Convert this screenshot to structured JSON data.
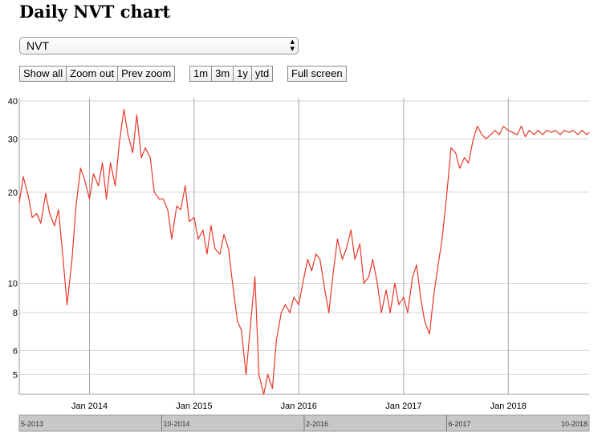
{
  "page": {
    "title": "Daily NVT chart"
  },
  "select": {
    "value": "NVT"
  },
  "buttons": {
    "zoom": [
      "Show all",
      "Zoom out",
      "Prev zoom"
    ],
    "ranges": [
      "1m",
      "3m",
      "1y",
      "ytd"
    ],
    "fullscreen": "Full screen"
  },
  "colors": {
    "line": "#e8382a",
    "grid": "#d3d3d3",
    "navigator": "#c8c8c8"
  },
  "chart_data": {
    "type": "line",
    "title": "Daily NVT chart",
    "scale": "log",
    "ylim": [
      4.3,
      41
    ],
    "xlim": [
      "2013-05-01",
      "2018-10-10"
    ],
    "grid": true,
    "yticks": [
      5,
      6,
      8,
      10,
      20,
      30,
      40
    ],
    "xticks": [
      {
        "date": "2014-01-01",
        "label": "Jan 2014"
      },
      {
        "date": "2015-01-01",
        "label": "Jan 2015"
      },
      {
        "date": "2016-01-01",
        "label": "Jan 2016"
      },
      {
        "date": "2017-01-01",
        "label": "Jan 2017"
      },
      {
        "date": "2018-01-01",
        "label": "Jan 2018"
      }
    ],
    "navigator_labels": [
      "5-2013",
      "10-2014",
      "2-2016",
      "6-2017",
      "10-2018"
    ],
    "series": [
      {
        "x": [
          "2013-05-01",
          "2013-05-15",
          "2013-06-01",
          "2013-06-15",
          "2013-07-01",
          "2013-07-15",
          "2013-08-01",
          "2013-08-15",
          "2013-09-01",
          "2013-09-15",
          "2013-10-01",
          "2013-10-15",
          "2013-11-01",
          "2013-11-15",
          "2013-12-01",
          "2013-12-15",
          "2014-01-01",
          "2014-01-15",
          "2014-02-01",
          "2014-02-15",
          "2014-03-01",
          "2014-03-15",
          "2014-04-01",
          "2014-04-15",
          "2014-05-01",
          "2014-05-15",
          "2014-06-01",
          "2014-06-15",
          "2014-07-01",
          "2014-07-15",
          "2014-08-01",
          "2014-08-15",
          "2014-09-01",
          "2014-09-15",
          "2014-10-01",
          "2014-10-15",
          "2014-11-01",
          "2014-11-15",
          "2014-12-01",
          "2014-12-15",
          "2015-01-01",
          "2015-01-15",
          "2015-02-01",
          "2015-02-15",
          "2015-03-01",
          "2015-03-15",
          "2015-04-01",
          "2015-04-15",
          "2015-05-01",
          "2015-05-15",
          "2015-06-01",
          "2015-06-15",
          "2015-07-01",
          "2015-07-15",
          "2015-08-01",
          "2015-08-15",
          "2015-09-01",
          "2015-09-15",
          "2015-10-01",
          "2015-10-15",
          "2015-11-01",
          "2015-11-15",
          "2015-12-01",
          "2015-12-15",
          "2016-01-01",
          "2016-01-15",
          "2016-02-01",
          "2016-02-15",
          "2016-03-01",
          "2016-03-15",
          "2016-04-01",
          "2016-04-15",
          "2016-05-01",
          "2016-05-15",
          "2016-06-01",
          "2016-06-15",
          "2016-07-01",
          "2016-07-15",
          "2016-08-01",
          "2016-08-15",
          "2016-09-01",
          "2016-09-15",
          "2016-10-01",
          "2016-10-15",
          "2016-11-01",
          "2016-11-15",
          "2016-12-01",
          "2016-12-15",
          "2017-01-01",
          "2017-01-15",
          "2017-02-01",
          "2017-02-15",
          "2017-03-01",
          "2017-03-15",
          "2017-04-01",
          "2017-04-15",
          "2017-05-01",
          "2017-05-15",
          "2017-06-01",
          "2017-06-15",
          "2017-07-01",
          "2017-07-15",
          "2017-08-01",
          "2017-08-15",
          "2017-09-01",
          "2017-09-15",
          "2017-10-01",
          "2017-10-15",
          "2017-11-01",
          "2017-11-15",
          "2017-12-01",
          "2017-12-15",
          "2018-01-01",
          "2018-01-15",
          "2018-02-01",
          "2018-02-15",
          "2018-03-01",
          "2018-03-15",
          "2018-04-01",
          "2018-04-15",
          "2018-05-01",
          "2018-05-15",
          "2018-06-01",
          "2018-06-15",
          "2018-07-01",
          "2018-07-15",
          "2018-08-01",
          "2018-08-15",
          "2018-09-01",
          "2018-09-15",
          "2018-10-01",
          "2018-10-10"
        ],
        "y": [
          18.5,
          22.5,
          19.5,
          16.5,
          17.0,
          15.8,
          19.8,
          17.0,
          15.5,
          17.5,
          12.0,
          8.5,
          12.0,
          18.0,
          24.0,
          22.0,
          19.0,
          23.0,
          21.0,
          25.0,
          19.0,
          25.0,
          21.0,
          29.0,
          37.5,
          31.0,
          27.0,
          36.0,
          26.0,
          28.0,
          26.0,
          20.0,
          19.0,
          19.0,
          17.5,
          14.0,
          18.0,
          17.5,
          21.0,
          16.0,
          16.5,
          14.0,
          15.0,
          12.5,
          15.5,
          13.0,
          12.5,
          14.5,
          13.0,
          10.0,
          7.5,
          7.0,
          5.0,
          7.0,
          10.5,
          5.0,
          4.3,
          5.0,
          4.5,
          6.5,
          8.0,
          8.5,
          8.0,
          9.0,
          8.5,
          10.0,
          12.0,
          11.0,
          12.5,
          12.0,
          9.5,
          8.0,
          11.0,
          14.0,
          12.0,
          13.0,
          15.0,
          12.0,
          13.5,
          10.0,
          10.5,
          12.0,
          10.0,
          8.0,
          9.5,
          8.0,
          10.0,
          8.5,
          9.0,
          8.0,
          10.5,
          11.5,
          9.0,
          7.5,
          6.8,
          9.0,
          11.5,
          14.0,
          20.0,
          28.0,
          27.0,
          24.0,
          26.0,
          25.0,
          30.0,
          33.0,
          31.0,
          30.0,
          31.0,
          32.0,
          31.0,
          33.0,
          32.0,
          31.5,
          31.0,
          33.0,
          30.5,
          32.0,
          31.0,
          32.0,
          31.0,
          32.0,
          31.5,
          32.0,
          31.0,
          32.0,
          31.5,
          32.0,
          31.0,
          32.0,
          31.0,
          31.5
        ]
      }
    ]
  }
}
